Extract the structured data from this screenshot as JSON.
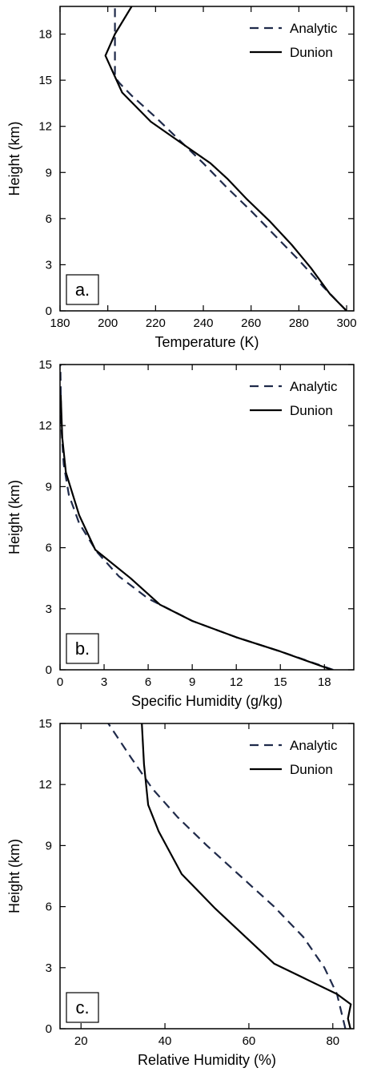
{
  "chart_data": [
    {
      "type": "line",
      "panel_label": "a.",
      "xlabel": "Temperature (K)",
      "ylabel": "Height (km)",
      "xlim": [
        180,
        303
      ],
      "ylim": [
        0,
        19.8
      ],
      "xticks": [
        180,
        200,
        220,
        240,
        260,
        280,
        300
      ],
      "yticks": [
        0,
        3,
        6,
        9,
        12,
        15,
        18
      ],
      "legend": "top-right",
      "series": [
        {
          "name": "Analytic",
          "style": "dashed",
          "color": "#1f2a4a",
          "x": [
            300,
            290,
            280,
            270,
            260,
            250,
            240,
            230,
            220,
            210,
            205,
            203,
            203,
            203,
            203
          ],
          "y": [
            0,
            1.6,
            3.3,
            4.9,
            6.5,
            8.0,
            9.6,
            11.1,
            12.6,
            14.0,
            14.8,
            15.2,
            16.5,
            18.0,
            19.8
          ]
        },
        {
          "name": "Dunion",
          "style": "solid",
          "color": "#000000",
          "x": [
            300,
            293,
            285,
            277,
            268,
            258,
            250,
            243,
            230,
            218,
            206,
            199,
            203,
            210
          ],
          "y": [
            0,
            1.1,
            2.8,
            4.3,
            5.8,
            7.3,
            8.6,
            9.6,
            11.0,
            12.3,
            14.2,
            16.6,
            18.0,
            19.8
          ]
        }
      ]
    },
    {
      "type": "line",
      "panel_label": "b.",
      "xlabel": "Specific Humidity (g/kg)",
      "ylabel": "Height (km)",
      "xlim": [
        0,
        20
      ],
      "ylim": [
        0,
        15
      ],
      "xticks": [
        0,
        3,
        6,
        9,
        12,
        15,
        18
      ],
      "yticks": [
        0,
        3,
        6,
        9,
        12,
        15
      ],
      "legend": "top-right",
      "series": [
        {
          "name": "Analytic",
          "style": "dashed",
          "color": "#1f2a4a",
          "x": [
            18.6,
            15,
            12,
            9,
            6,
            4,
            2.5,
            1.3,
            0.6,
            0.25,
            0.08,
            0.02
          ],
          "y": [
            0,
            0.9,
            1.6,
            2.4,
            3.5,
            4.6,
            5.8,
            7.2,
            8.6,
            10.1,
            12.0,
            15.0
          ]
        },
        {
          "name": "Dunion",
          "style": "solid",
          "color": "#000000",
          "x": [
            18.5,
            15,
            12,
            9,
            6.8,
            4.8,
            2.4,
            1.3,
            0.4,
            0.15,
            0.05
          ],
          "y": [
            0,
            0.9,
            1.6,
            2.4,
            3.2,
            4.5,
            5.9,
            7.6,
            9.7,
            11.4,
            13.5
          ]
        }
      ]
    },
    {
      "type": "line",
      "panel_label": "c.",
      "xlabel": "Relative Humidity (%)",
      "ylabel": "Height (km)",
      "xlim": [
        15,
        85
      ],
      "ylim": [
        0,
        15
      ],
      "xticks": [
        20,
        40,
        60,
        80
      ],
      "yticks": [
        0,
        3,
        6,
        9,
        12,
        15
      ],
      "legend": "top-right",
      "series": [
        {
          "name": "Analytic",
          "style": "dashed",
          "color": "#1f2a4a",
          "x": [
            83,
            81,
            78,
            73,
            66,
            58,
            50,
            43,
            37,
            32,
            26.5
          ],
          "y": [
            0,
            1.7,
            3.0,
            4.5,
            6.0,
            7.5,
            9.0,
            10.4,
            11.8,
            13.3,
            15.0
          ]
        },
        {
          "name": "Dunion",
          "style": "solid",
          "color": "#000000",
          "x": [
            84.2,
            83.6,
            84.3,
            81,
            66,
            52,
            44,
            38.5,
            36,
            35,
            34.5
          ],
          "y": [
            0,
            0.5,
            1.2,
            1.7,
            3.2,
            5.9,
            7.6,
            9.7,
            11.0,
            13.0,
            15.0
          ]
        }
      ]
    }
  ]
}
